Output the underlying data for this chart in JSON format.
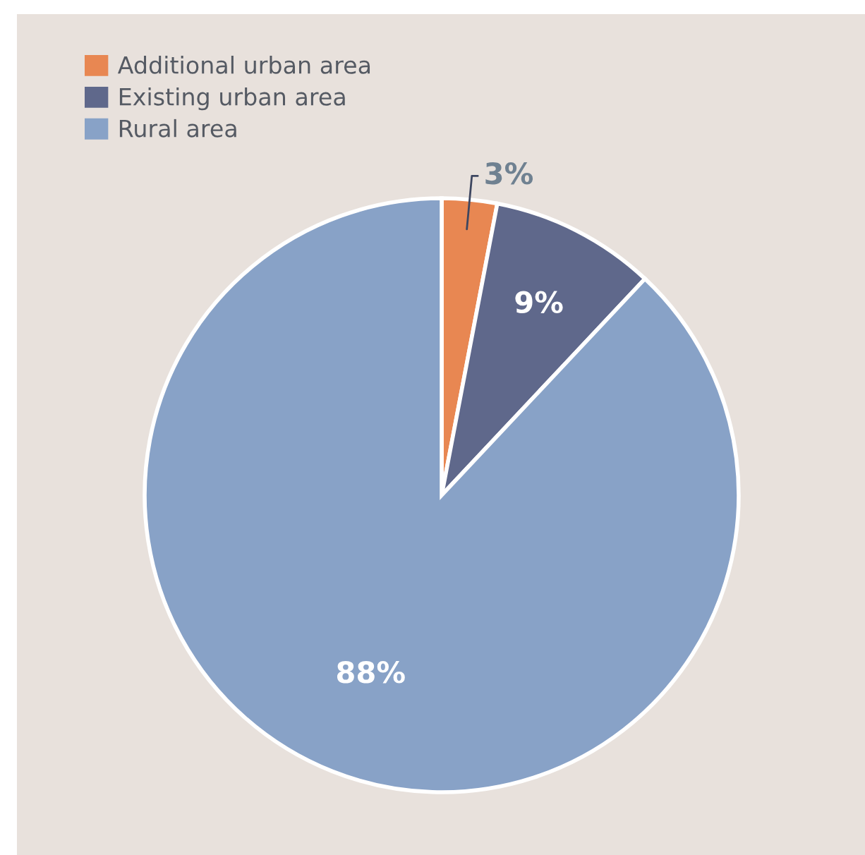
{
  "chart_data": {
    "type": "pie",
    "categories": [
      "Additional urban area",
      "Existing urban area",
      "Rural area"
    ],
    "values": [
      3,
      9,
      88
    ],
    "colors": [
      "#e88752",
      "#5f688b",
      "#88a2c7"
    ],
    "value_labels": [
      "3%",
      "9%",
      "88%"
    ],
    "legend": "top left"
  }
}
